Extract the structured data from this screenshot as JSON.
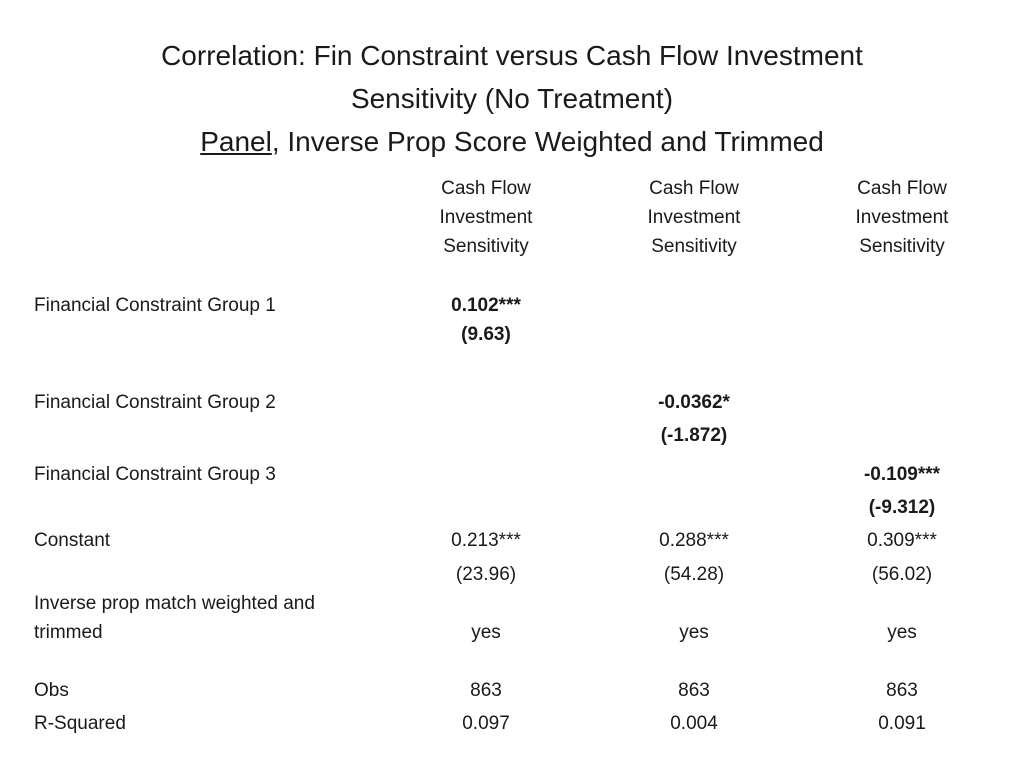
{
  "title": {
    "line1": "Correlation: Fin Constraint versus Cash Flow Investment",
    "line2": "Sensitivity (No Treatment)",
    "line3_underlined": "Panel",
    "line3_rest": ", Inverse Prop Score Weighted and Trimmed"
  },
  "columns": [
    {
      "line1": "Cash Flow",
      "line2": "Investment",
      "line3": "Sensitivity"
    },
    {
      "line1": "Cash Flow",
      "line2": "Investment",
      "line3": "Sensitivity"
    },
    {
      "line1": "Cash Flow",
      "line2": "Investment",
      "line3": "Sensitivity"
    }
  ],
  "rows": {
    "group1": {
      "label": "Financial Constraint Group 1",
      "coef": "0.102***",
      "tstat": "(9.63)"
    },
    "group2": {
      "label": "Financial Constraint Group 2",
      "coef": "-0.0362*",
      "tstat": "(-1.872)"
    },
    "group3": {
      "label": "Financial Constraint Group 3",
      "coef": "-0.109***",
      "tstat": "(-9.312)"
    },
    "constant": {
      "label": "Constant",
      "coefs": [
        "0.213***",
        "0.288***",
        "0.309***"
      ],
      "tstats": [
        "(23.96)",
        "(54.28)",
        "(56.02)"
      ]
    },
    "ipw": {
      "label_line1": "Inverse prop match weighted and",
      "label_line2": "trimmed",
      "values": [
        "yes",
        "yes",
        "yes"
      ]
    },
    "obs": {
      "label": "Obs",
      "values": [
        "863",
        "863",
        "863"
      ]
    },
    "r2": {
      "label": "R-Squared",
      "values": [
        "0.097",
        "0.004",
        "0.091"
      ]
    }
  }
}
